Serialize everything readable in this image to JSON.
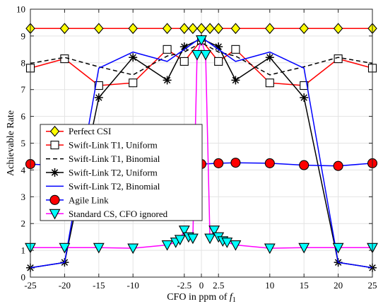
{
  "chart_data": {
    "type": "line",
    "title": "",
    "xlabel": "CFO in ppm of ",
    "xlabel_symbol": "f",
    "xlabel_subscript": "1",
    "ylabel": "Achievable Rate",
    "xlim": [
      -25,
      25
    ],
    "ylim": [
      0,
      10
    ],
    "xticks": [
      -25,
      -20,
      -15,
      -10,
      -2.5,
      0,
      2.5,
      10,
      15,
      20,
      25
    ],
    "xtick_labels": [
      "-25",
      "-20",
      "-15",
      "-10",
      "-2.5",
      "0",
      "2.5",
      "10",
      "15",
      "20",
      "25"
    ],
    "yticks": [
      0,
      1,
      2,
      3,
      4,
      5,
      6,
      7,
      8,
      9,
      10
    ],
    "grid": true,
    "legend_placement": "left-center",
    "series": [
      {
        "name": "Perfect CSI",
        "color": "#ff0000",
        "marker": "diamond",
        "marker_fill": "#ffff00",
        "line_style": "solid",
        "x": [
          -25,
          -20,
          -15,
          -10,
          -5,
          -2.5,
          -1.25,
          0,
          1.25,
          2.5,
          5,
          10,
          15,
          20,
          25
        ],
        "y": [
          9.28,
          9.28,
          9.28,
          9.28,
          9.28,
          9.28,
          9.28,
          9.28,
          9.28,
          9.28,
          9.28,
          9.28,
          9.28,
          9.28,
          9.28
        ]
      },
      {
        "name": "Swift-Link T1, Uniform",
        "color": "#ff0000",
        "marker": "square",
        "marker_fill": "#ffffff",
        "line_style": "solid",
        "x": [
          -25,
          -20,
          -15,
          -10,
          -5,
          -2.5,
          0,
          2.5,
          5,
          10,
          15,
          20,
          25
        ],
        "y": [
          7.8,
          8.15,
          7.15,
          7.25,
          8.5,
          8.05,
          8.85,
          8.05,
          8.5,
          7.25,
          7.15,
          8.15,
          7.8
        ]
      },
      {
        "name": "Swift-Link T1, Binomial",
        "color": "#000000",
        "marker": "none",
        "line_style": "dashed",
        "x": [
          -25,
          -20,
          -15,
          -10,
          -5,
          -2.5,
          0,
          2.5,
          5,
          10,
          15,
          20,
          25
        ],
        "y": [
          7.98,
          8.2,
          7.85,
          7.55,
          8.25,
          8.4,
          8.75,
          8.4,
          8.25,
          7.55,
          7.85,
          8.2,
          7.98
        ]
      },
      {
        "name": "Swift-Link T2, Uniform",
        "color": "#000000",
        "marker": "asterisk",
        "line_style": "solid",
        "x": [
          -25,
          -20,
          -15,
          -10,
          -5,
          -2.5,
          0,
          2.5,
          5,
          10,
          15,
          20,
          25
        ],
        "y": [
          0.35,
          0.55,
          6.7,
          8.2,
          7.35,
          8.6,
          8.9,
          8.6,
          7.35,
          8.2,
          6.7,
          0.55,
          0.35
        ]
      },
      {
        "name": "Swift-Link T2, Binomial",
        "color": "#0000ff",
        "marker": "none",
        "line_style": "solid",
        "x": [
          -25,
          -20,
          -15,
          -10,
          -5,
          -2.5,
          0,
          2.5,
          5,
          10,
          15,
          20,
          25
        ],
        "y": [
          0.35,
          0.55,
          7.8,
          8.4,
          8.05,
          8.5,
          8.95,
          8.5,
          8.05,
          8.4,
          7.8,
          0.55,
          0.35
        ]
      },
      {
        "name": "Agile Link",
        "color": "#0000ff",
        "marker": "circle",
        "marker_fill": "#ff0000",
        "line_style": "solid",
        "x": [
          -25,
          -20,
          -15,
          -10,
          -5,
          -2.5,
          0,
          2.5,
          5,
          10,
          15,
          20,
          25
        ],
        "y": [
          4.22,
          4.15,
          4.2,
          4.25,
          4.2,
          4.18,
          4.22,
          4.25,
          4.27,
          4.25,
          4.18,
          4.15,
          4.25
        ]
      },
      {
        "name": "Standard CS, CFO ignored",
        "color": "#ff00ff",
        "marker": "triangle-down",
        "marker_fill": "#00ffff",
        "line_style": "solid",
        "x": [
          -25,
          -20,
          -15,
          -10,
          -5,
          -3.75,
          -3.125,
          -2.5,
          -1.875,
          -1.25,
          -0.625,
          0,
          0.625,
          1.25,
          1.875,
          2.5,
          3.125,
          3.75,
          5,
          10,
          15,
          20,
          25
        ],
        "y": [
          1.1,
          1.1,
          1.1,
          1.08,
          1.2,
          1.3,
          1.4,
          1.75,
          1.5,
          1.45,
          8.3,
          8.85,
          8.3,
          1.45,
          1.75,
          1.5,
          1.35,
          1.3,
          1.2,
          1.08,
          1.1,
          1.1,
          1.1
        ]
      }
    ]
  }
}
